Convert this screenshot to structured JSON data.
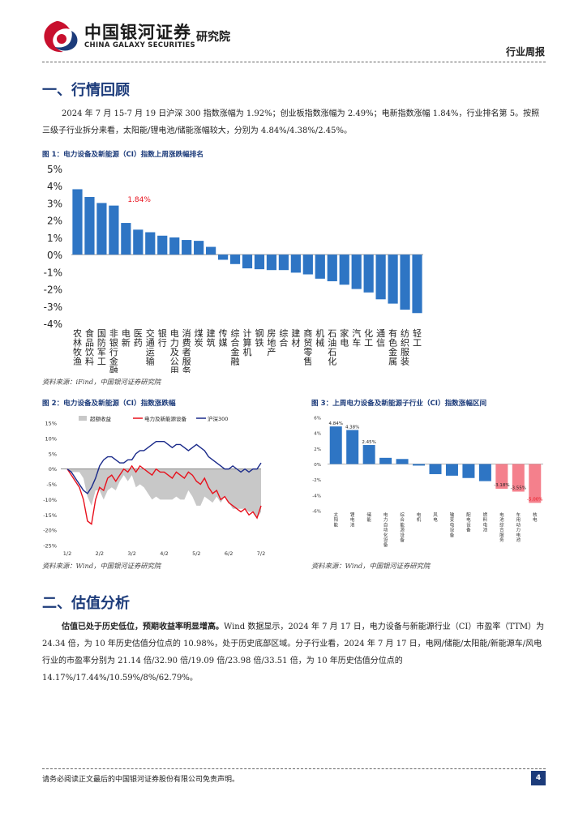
{
  "header": {
    "brand_cn": "中国银河证券",
    "brand_en": "CHINA GALAXY SECURITIES",
    "dept": "研究院",
    "report_type": "行业周报"
  },
  "section1": {
    "title": "一、行情回顾",
    "para": "2024 年 7 月 15-7 月 19 日沪深 300 指数涨幅为 1.92%；创业板指数涨幅为 2.49%；电新指数涨幅 1.84%，行业排名第 5。按照三级子行业拆分来看，太阳能/锂电池/储能涨幅较大，分别为 4.84%/4.38%/2.45%。"
  },
  "fig1": {
    "caption": "图 1：电力设备及新能源（CI）指数上周涨跌幅排名",
    "source": "资料来源：iFind，中国银河证券研究院"
  },
  "fig2": {
    "caption": "图 2：电力设备及新能源（CI）指数涨跌幅",
    "source": "资料来源：Wind，中国银河证券研究院"
  },
  "fig3": {
    "caption": "图 3：上周电力设备及新能源子行业（CI）指数涨幅区间",
    "source": "资料来源：Wind，中国银河证券研究院"
  },
  "section2": {
    "title": "二、估值分析",
    "lead": "估值已处于历史低位，预期收益率明显增高。",
    "para": "Wind 数据显示，2024 年 7 月 17 日，电力设备与新能源行业（CI）市盈率（TTM）为 24.34 倍，为 10 年历史估值分位点的 10.98%，处于历史底部区域。分子行业看，2024 年 7 月 17 日，电网/储能/太阳能/新能源车/风电行业的市盈率分别为 21.14 倍/32.90 倍/19.09 倍/23.98 倍/33.51 倍，为 10 年历史估值分位点的 14.17%/17.44%/10.59%/8%/62.79%。"
  },
  "footer": {
    "disclaimer": "请务必阅读正文最后的中国银河证券股份有限公司免责声明。",
    "page": "4"
  },
  "colors": {
    "accent": "#1c3b7a",
    "bar_blue": "#2e75c4",
    "bar_red": "#f4808c",
    "red": "#e8101c",
    "navy": "#1a2a8a",
    "gray": "#c8c8c8"
  },
  "chart_data": [
    {
      "type": "bar",
      "title": "电力设备及新能源（CI）指数上周涨跌幅排名",
      "categories": [
        "农林牧渔",
        "食品饮料",
        "国防军工",
        "非银行金融",
        "电新",
        "医药",
        "交通运输",
        "银行",
        "电力及公用事业",
        "消费者服务",
        "煤炭",
        "建筑",
        "传媒",
        "综合金融",
        "计算机",
        "钢铁",
        "房地产",
        "综合",
        "建材",
        "商贸零售",
        "机械",
        "石油石化",
        "家电",
        "汽车",
        "化工",
        "通信",
        "有色金属",
        "纺织服装",
        "轻工"
      ],
      "values": [
        3.8,
        3.35,
        3.0,
        2.85,
        1.84,
        1.45,
        1.3,
        1.1,
        1.0,
        0.85,
        0.8,
        0.45,
        -0.3,
        -0.55,
        -0.8,
        -0.85,
        -0.9,
        -0.9,
        -1.05,
        -1.15,
        -1.4,
        -1.55,
        -1.75,
        -2.0,
        -2.2,
        -2.6,
        -2.85,
        -3.2,
        -3.4
      ],
      "annotations": [
        {
          "index": 4,
          "text": "1.84%"
        }
      ],
      "ylim": [
        -4,
        5
      ],
      "yticks": [
        "5%",
        "4%",
        "3%",
        "2%",
        "1%",
        "0%",
        "-1%",
        "-2%",
        "-3%",
        "-4%"
      ]
    },
    {
      "type": "line",
      "title": "电力设备及新能源（CI）指数涨跌幅",
      "legend": [
        "超额收益",
        "电力及新能源设备",
        "沪深300"
      ],
      "x_ticks": [
        "1/2",
        "2/2",
        "3/2",
        "4/2",
        "5/2",
        "6/2",
        "7/2"
      ],
      "yticks": [
        "15%",
        "10%",
        "5%",
        "0%",
        "-5%",
        "-10%",
        "-15%",
        "-20%",
        "-25%"
      ],
      "ylim": [
        -25,
        15
      ],
      "series": [
        {
          "name": "沪深300",
          "values": [
            0,
            -1,
            -3,
            -5,
            -7,
            -8,
            -6,
            -3,
            1,
            3,
            4,
            4,
            3,
            2,
            2,
            3,
            3,
            5,
            6,
            6,
            7,
            8,
            9,
            9,
            9,
            8,
            7,
            8,
            8,
            7,
            6,
            7,
            8,
            7,
            6,
            4,
            3,
            2,
            1,
            0,
            0,
            1,
            0,
            -1,
            0,
            -1,
            0,
            0,
            2
          ]
        },
        {
          "name": "电力及新能源设备",
          "values": [
            0,
            -2,
            -4,
            -6,
            -10,
            -17,
            -18,
            -10,
            -6,
            -7,
            -3,
            -2,
            -4,
            -2,
            0,
            -1,
            1,
            -1,
            1,
            0,
            -1,
            -2,
            0,
            -1,
            -1,
            -2,
            -3,
            -1,
            -2,
            -3,
            -1,
            -2,
            -4,
            -5,
            -3,
            -6,
            -8,
            -7,
            -10,
            -9,
            -11,
            -12,
            -13,
            -14,
            -13,
            -15,
            -14,
            -16,
            -12
          ]
        },
        {
          "name": "超额收益",
          "values": [
            0,
            -1,
            -1,
            -1,
            -3,
            -9,
            -12,
            -7,
            -7,
            -10,
            -7,
            -6,
            -7,
            -4,
            -2,
            -4,
            -2,
            -6,
            -5,
            -6,
            -8,
            -10,
            -9,
            -10,
            -10,
            -10,
            -10,
            -9,
            -10,
            -10,
            -7,
            -9,
            -12,
            -12,
            -9,
            -10,
            -11,
            -9,
            -11,
            -9,
            -11,
            -13,
            -13,
            -13,
            -13,
            -14,
            -14,
            -16,
            -14
          ]
        }
      ]
    },
    {
      "type": "bar",
      "title": "上周电力设备及新能源子行业（CI）指数涨幅区间",
      "categories": [
        "太阳能",
        "锂电池",
        "储能",
        "电力自动化设备",
        "综合能源设备",
        "电机",
        "风电",
        "输变电设备",
        "配电设备",
        "燃料电池",
        "电池综合服务",
        "车用动力电池",
        "核电"
      ],
      "values": [
        4.84,
        4.38,
        2.45,
        0.8,
        0.65,
        -0.2,
        -1.3,
        -1.5,
        -1.8,
        -2.2,
        -3.18,
        -3.55,
        -5.0
      ],
      "labels": [
        "4.84%",
        "4.38%",
        "2.45%",
        "",
        "",
        "",
        "",
        "",
        "",
        "",
        "-3.18%",
        "-3.55%",
        "-5.00%"
      ],
      "ylim": [
        -6,
        6
      ],
      "yticks": [
        "6%",
        "4%",
        "2%",
        "0%",
        "-2%",
        "-4%",
        "-6%"
      ]
    }
  ]
}
